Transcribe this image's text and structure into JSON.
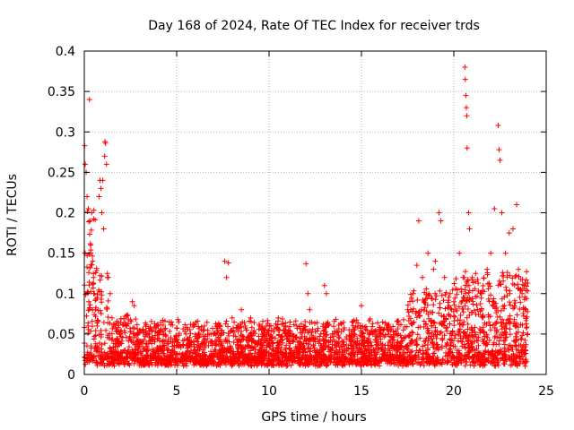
{
  "chart_data": {
    "type": "scatter",
    "title": "Day 168 of 2024, Rate Of TEC Index for receiver trds",
    "xlabel": "GPS time / hours",
    "ylabel": "ROTI / TECUs",
    "xlim": [
      0,
      25
    ],
    "ylim": [
      0,
      0.4
    ],
    "x_ticks": [
      0,
      5,
      10,
      15,
      20,
      25
    ],
    "x_tick_labels": [
      "0",
      "5",
      "10",
      "15",
      "20",
      "25"
    ],
    "y_ticks": [
      0,
      0.05,
      0.1,
      0.15,
      0.2,
      0.25,
      0.3,
      0.35,
      0.4
    ],
    "y_tick_labels": [
      "0",
      "0.05",
      "0.1",
      "0.15",
      "0.2",
      "0.25",
      "0.3",
      "0.35",
      "0.4"
    ],
    "grid": true,
    "legend": "none",
    "marker": "plus",
    "series": [
      {
        "color": "#ff0000",
        "points": [
          [
            0.02,
            0.283
          ],
          [
            0.05,
            0.26
          ],
          [
            0.1,
            0.25
          ],
          [
            0.15,
            0.22
          ],
          [
            0.22,
            0.205
          ],
          [
            0.28,
            0.34
          ],
          [
            0.3,
            0.19
          ],
          [
            0.35,
            0.16
          ],
          [
            0.4,
            0.2
          ],
          [
            0.45,
            0.14
          ],
          [
            0.5,
            0.12
          ],
          [
            0.55,
            0.1
          ],
          [
            0.6,
            0.08
          ],
          [
            0.7,
            0.06
          ],
          [
            0.8,
            0.22
          ],
          [
            0.85,
            0.24
          ],
          [
            0.9,
            0.23
          ],
          [
            0.95,
            0.2
          ],
          [
            1.0,
            0.24
          ],
          [
            1.05,
            0.18
          ],
          [
            1.1,
            0.27
          ],
          [
            1.12,
            0.288
          ],
          [
            1.15,
            0.286
          ],
          [
            1.2,
            0.26
          ],
          [
            1.25,
            0.125
          ],
          [
            1.3,
            0.12
          ],
          [
            1.4,
            0.1
          ],
          [
            1.5,
            0.07
          ],
          [
            1.8,
            0.04
          ],
          [
            2.2,
            0.03
          ],
          [
            2.6,
            0.09
          ],
          [
            2.7,
            0.085
          ],
          [
            3.0,
            0.04
          ],
          [
            3.5,
            0.05
          ],
          [
            4.0,
            0.06
          ],
          [
            4.5,
            0.03
          ],
          [
            5.0,
            0.04
          ],
          [
            5.5,
            0.05
          ],
          [
            6.0,
            0.03
          ],
          [
            6.5,
            0.06
          ],
          [
            7.0,
            0.05
          ],
          [
            7.6,
            0.14
          ],
          [
            7.7,
            0.12
          ],
          [
            7.8,
            0.138
          ],
          [
            8.0,
            0.07
          ],
          [
            8.5,
            0.08
          ],
          [
            9.0,
            0.07
          ],
          [
            9.5,
            0.06
          ],
          [
            10.0,
            0.05
          ],
          [
            10.5,
            0.07
          ],
          [
            11.0,
            0.05
          ],
          [
            11.5,
            0.06
          ],
          [
            12.0,
            0.137
          ],
          [
            12.1,
            0.1
          ],
          [
            12.2,
            0.08
          ],
          [
            13.0,
            0.11
          ],
          [
            13.1,
            0.1
          ],
          [
            13.5,
            0.05
          ],
          [
            14.0,
            0.04
          ],
          [
            14.5,
            0.05
          ],
          [
            15.0,
            0.085
          ],
          [
            15.5,
            0.04
          ],
          [
            16.0,
            0.05
          ],
          [
            16.5,
            0.04
          ],
          [
            17.0,
            0.05
          ],
          [
            17.5,
            0.08
          ],
          [
            17.8,
            0.1
          ],
          [
            18.0,
            0.135
          ],
          [
            18.1,
            0.19
          ],
          [
            18.3,
            0.12
          ],
          [
            18.6,
            0.15
          ],
          [
            18.9,
            0.13
          ],
          [
            19.0,
            0.14
          ],
          [
            19.2,
            0.2
          ],
          [
            19.3,
            0.19
          ],
          [
            19.5,
            0.12
          ],
          [
            19.8,
            0.1
          ],
          [
            20.0,
            0.09
          ],
          [
            20.3,
            0.15
          ],
          [
            20.5,
            0.12
          ],
          [
            20.6,
            0.38
          ],
          [
            20.62,
            0.365
          ],
          [
            20.65,
            0.345
          ],
          [
            20.68,
            0.33
          ],
          [
            20.7,
            0.32
          ],
          [
            20.72,
            0.28
          ],
          [
            20.8,
            0.2
          ],
          [
            20.85,
            0.18
          ],
          [
            21.0,
            0.12
          ],
          [
            21.5,
            0.1
          ],
          [
            21.8,
            0.13
          ],
          [
            22.0,
            0.15
          ],
          [
            22.2,
            0.205
          ],
          [
            22.4,
            0.308
          ],
          [
            22.45,
            0.278
          ],
          [
            22.5,
            0.265
          ],
          [
            22.6,
            0.2
          ],
          [
            22.8,
            0.15
          ],
          [
            23.0,
            0.175
          ],
          [
            23.2,
            0.18
          ],
          [
            23.4,
            0.21
          ],
          [
            23.5,
            0.13
          ],
          [
            23.7,
            0.1
          ],
          [
            23.8,
            0.11
          ],
          [
            23.9,
            0.08
          ],
          [
            24.0,
            0.05
          ]
        ]
      }
    ]
  }
}
